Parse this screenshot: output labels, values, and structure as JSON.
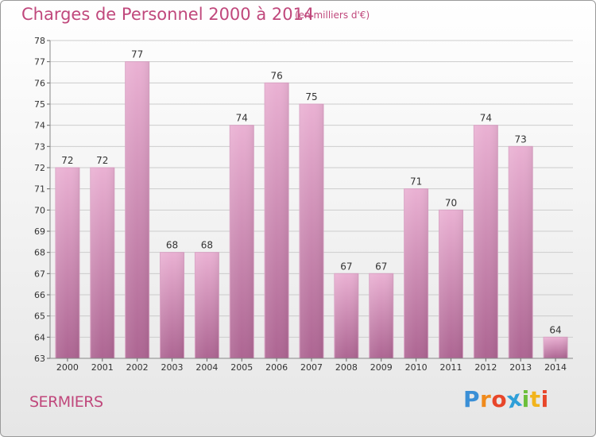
{
  "header": {
    "title": "Charges de Personnel 2000 à 2014",
    "subtitle": "(en milliers d'€)"
  },
  "footer": {
    "place": "SERMIERS",
    "logo": [
      "P",
      "r",
      "o",
      "x",
      "i",
      "t",
      "i"
    ],
    "logo_colors": [
      "#3a8fd6",
      "#f08a1c",
      "#e8462a",
      "#2f9fd8",
      "#6cbf3a",
      "#f2b41c",
      "#e8462a"
    ]
  },
  "colors": {
    "bar_top": "#eab1d3",
    "bar_bottom": "#ad6592",
    "grid": "#cccccc"
  },
  "chart_data": {
    "type": "bar",
    "categories": [
      "2000",
      "2001",
      "2002",
      "2003",
      "2004",
      "2005",
      "2006",
      "2007",
      "2008",
      "2009",
      "2010",
      "2011",
      "2012",
      "2013",
      "2014"
    ],
    "values": [
      72,
      72,
      77,
      68,
      68,
      74,
      76,
      75,
      67,
      67,
      71,
      70,
      74,
      73,
      64
    ],
    "title": "Charges de Personnel 2000 à 2014",
    "ylim": [
      63,
      78
    ],
    "yticks": [
      63,
      64,
      65,
      66,
      67,
      68,
      69,
      70,
      71,
      72,
      73,
      74,
      75,
      76,
      77,
      78
    ],
    "grid": true
  }
}
